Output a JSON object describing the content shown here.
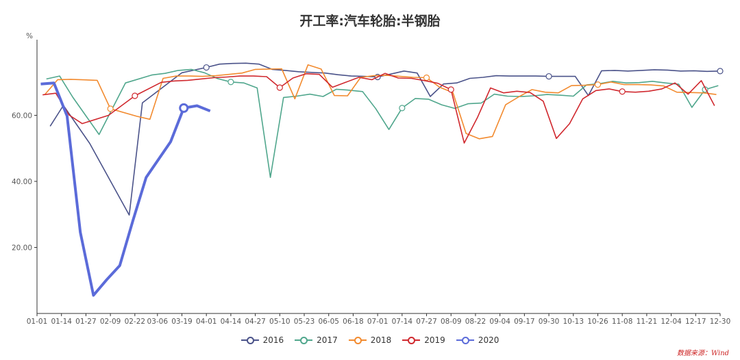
{
  "chart_data": {
    "type": "line",
    "title": "开工率:汽车轮胎:半钢胎",
    "ylabel": "%",
    "ylim": [
      0,
      80
    ],
    "yticks": [
      "20.00",
      "40.00",
      "60.00"
    ],
    "ytick_values": [
      20,
      40,
      60
    ],
    "xticks": [
      "01-01",
      "01-14",
      "01-27",
      "02-09",
      "02-22",
      "03-06",
      "03-19",
      "04-01",
      "04-14",
      "04-27",
      "05-10",
      "05-23",
      "06-05",
      "06-18",
      "07-01",
      "07-14",
      "07-27",
      "08-09",
      "08-22",
      "09-04",
      "09-17",
      "09-30",
      "10-13",
      "10-26",
      "11-08",
      "11-21",
      "12-04",
      "12-17",
      "12-30"
    ],
    "xlim_day": [
      1,
      364
    ],
    "legend_position": "bottom-center",
    "grid": false,
    "series": [
      {
        "name": "2016",
        "color": "#4a5289",
        "x": [
          "01-08",
          "01-15",
          "01-29",
          "02-19",
          "02-26",
          "03-19",
          "04-01",
          "04-08",
          "04-15",
          "04-22",
          "04-29",
          "05-06",
          "05-13",
          "05-20",
          "05-27",
          "06-03",
          "06-10",
          "06-17",
          "06-24",
          "07-01",
          "07-08",
          "07-15",
          "07-22",
          "07-29",
          "08-05",
          "08-12",
          "08-19",
          "08-26",
          "09-02",
          "09-09",
          "09-16",
          "09-23",
          "09-30",
          "10-07",
          "10-14",
          "10-21",
          "10-28",
          "11-04",
          "11-11",
          "11-18",
          "11-25",
          "12-02",
          "12-09",
          "12-16",
          "12-23",
          "12-30"
        ],
        "y": [
          56.7,
          63.0,
          51.5,
          29.8,
          63.8,
          72.9,
          74.5,
          75.5,
          75.7,
          75.8,
          75.5,
          73.9,
          73.6,
          73.2,
          73.0,
          72.8,
          72.3,
          71.9,
          71.8,
          71.6,
          72.5,
          73.4,
          72.8,
          65.7,
          69.5,
          69.8,
          71.2,
          71.5,
          72.0,
          71.9,
          71.9,
          71.9,
          71.8,
          71.8,
          71.8,
          66.0,
          73.5,
          73.6,
          73.4,
          73.6,
          73.8,
          73.7,
          73.4,
          73.5,
          73.3,
          73.4
        ],
        "markers": [
          "04-01",
          "07-01",
          "09-30",
          "12-30"
        ]
      },
      {
        "name": "2017",
        "color": "#4fa68c",
        "x": [
          "01-06",
          "01-13",
          "01-20",
          "02-03",
          "02-17",
          "03-03",
          "03-10",
          "03-17",
          "03-24",
          "03-31",
          "04-07",
          "04-14",
          "04-21",
          "04-28",
          "05-05",
          "05-12",
          "05-19",
          "05-26",
          "06-02",
          "06-09",
          "06-16",
          "06-23",
          "06-30",
          "07-07",
          "07-14",
          "07-21",
          "07-28",
          "08-04",
          "08-11",
          "08-18",
          "08-25",
          "09-01",
          "09-08",
          "09-15",
          "09-22",
          "09-29",
          "10-06",
          "10-13",
          "10-20",
          "10-27",
          "11-03",
          "11-10",
          "11-17",
          "11-24",
          "12-01",
          "12-08",
          "12-15",
          "12-22",
          "12-29"
        ],
        "y": [
          71.0,
          71.9,
          65.5,
          54.2,
          69.8,
          72.2,
          72.7,
          73.6,
          73.9,
          72.9,
          71.1,
          70.1,
          69.8,
          68.3,
          41.2,
          65.4,
          65.8,
          66.4,
          65.7,
          67.9,
          67.6,
          67.2,
          62.0,
          55.7,
          62.2,
          65.1,
          64.9,
          63.2,
          62.1,
          63.5,
          63.7,
          66.4,
          65.8,
          65.7,
          65.9,
          66.3,
          66.1,
          65.8,
          69.2,
          69.6,
          70.3,
          69.8,
          69.9,
          70.3,
          69.8,
          69.4,
          62.4,
          67.8,
          69.0
        ],
        "markers": [
          "04-14",
          "07-14",
          "09-30",
          "12-22"
        ]
      },
      {
        "name": "2018",
        "color": "#f28a2e",
        "x": [
          "01-05",
          "01-12",
          "01-19",
          "02-02",
          "02-09",
          "02-23",
          "03-02",
          "03-09",
          "03-16",
          "03-23",
          "03-30",
          "04-06",
          "04-13",
          "04-20",
          "04-27",
          "05-04",
          "05-11",
          "05-18",
          "05-25",
          "06-01",
          "06-08",
          "06-15",
          "06-22",
          "06-29",
          "07-06",
          "07-13",
          "07-20",
          "07-27",
          "08-03",
          "08-10",
          "08-17",
          "08-24",
          "08-31",
          "09-07",
          "09-14",
          "09-21",
          "09-28",
          "10-05",
          "10-12",
          "10-19",
          "10-26",
          "11-02",
          "11-09",
          "11-16",
          "11-23",
          "11-30",
          "12-07",
          "12-14",
          "12-21",
          "12-28"
        ],
        "y": [
          66.2,
          70.8,
          70.9,
          70.6,
          62.0,
          59.7,
          58.8,
          71.2,
          71.9,
          71.9,
          71.8,
          72.0,
          72.4,
          72.8,
          73.9,
          74.0,
          74.1,
          65.0,
          75.3,
          74.0,
          66.0,
          65.9,
          71.5,
          72.0,
          72.1,
          71.8,
          71.5,
          71.4,
          68.5,
          66.9,
          54.5,
          52.9,
          53.6,
          63.2,
          65.6,
          67.8,
          67.0,
          66.8,
          69.0,
          69.1,
          69.3,
          70.1,
          69.3,
          69.3,
          69.2,
          68.9,
          67.0,
          66.9,
          66.8,
          66.3
        ],
        "markers": [
          "02-09",
          "07-27",
          "10-26"
        ]
      },
      {
        "name": "2019",
        "color": "#d0282e",
        "x": [
          "01-04",
          "01-11",
          "01-18",
          "01-25",
          "02-08",
          "02-22",
          "03-08",
          "03-15",
          "03-22",
          "03-29",
          "04-05",
          "04-12",
          "04-19",
          "04-26",
          "05-03",
          "05-10",
          "05-17",
          "05-24",
          "05-31",
          "06-07",
          "06-14",
          "06-21",
          "06-28",
          "07-05",
          "07-12",
          "07-19",
          "07-26",
          "08-02",
          "08-09",
          "08-16",
          "08-23",
          "08-30",
          "09-06",
          "09-13",
          "09-20",
          "09-27",
          "10-04",
          "10-11",
          "10-18",
          "10-25",
          "11-01",
          "11-08",
          "11-15",
          "11-22",
          "11-29",
          "12-06",
          "12-13",
          "12-20",
          "12-27"
        ],
        "y": [
          66.2,
          66.7,
          60.1,
          57.5,
          60.0,
          65.9,
          70.0,
          70.4,
          70.6,
          71.0,
          71.4,
          71.6,
          71.9,
          71.9,
          71.7,
          68.4,
          71.3,
          72.6,
          72.4,
          68.5,
          70.0,
          71.5,
          70.8,
          72.7,
          71.3,
          71.2,
          70.5,
          69.7,
          67.8,
          51.6,
          59.3,
          68.3,
          66.8,
          67.3,
          66.9,
          64.3,
          53.0,
          57.5,
          65.0,
          67.5,
          68.0,
          67.2,
          67.0,
          67.3,
          68.0,
          69.8,
          66.4,
          70.5,
          62.9
        ],
        "markers": [
          "02-22",
          "05-10",
          "08-09",
          "11-08"
        ]
      },
      {
        "name": "2020",
        "color": "#5b6bd9",
        "x": [
          "01-03",
          "01-10",
          "01-17",
          "01-24",
          "01-31",
          "02-07",
          "02-14",
          "02-21",
          "02-28",
          "03-06",
          "03-13",
          "03-20",
          "03-27",
          "04-03"
        ],
        "y": [
          69.5,
          69.8,
          59.8,
          24.6,
          5.5,
          10.2,
          14.5,
          28.2,
          41.2,
          46.2,
          52.0,
          62.2,
          62.9,
          61.3
        ],
        "markers": [
          "03-20"
        ]
      }
    ]
  },
  "source_note": "数据来源：Wind"
}
